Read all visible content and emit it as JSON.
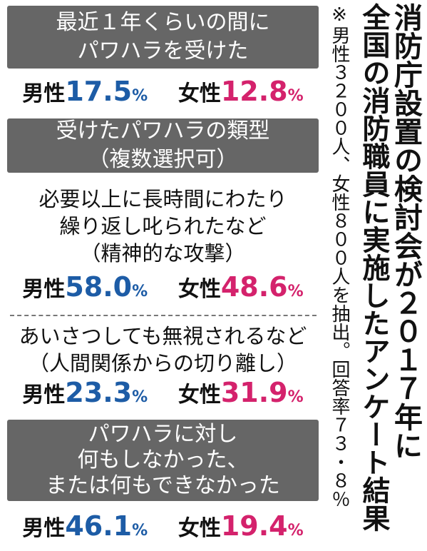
{
  "title": {
    "lines": [
      "消防庁設置の検討会が２０１７年に",
      "全国の消防職員に実施したアンケート結果"
    ]
  },
  "note": "※男性３２００人、女性８００人を抽出。回答率７３・８％",
  "sections": [
    {
      "heading": [
        "最近１年くらいの間に",
        "パワハラを受けた"
      ],
      "male_label": "男性",
      "male_value": "17.5",
      "male_unit": "%",
      "female_label": "女性",
      "female_value": "12.8",
      "female_unit": "%"
    },
    {
      "heading": [
        "受けたパワハラの類型",
        "（複数選択可）"
      ]
    },
    {
      "text": [
        "必要以上に長時間にわたり",
        "繰り返し叱られたなど",
        "（精神的な攻撃）"
      ],
      "male_label": "男性",
      "male_value": "58.0",
      "male_unit": "%",
      "female_label": "女性",
      "female_value": "48.6",
      "female_unit": "%"
    },
    {
      "text": [
        "あいさつしても無視されるなど",
        "（人間関係からの切り離し）"
      ],
      "male_label": "男性",
      "male_value": "23.3",
      "male_unit": "%",
      "female_label": "女性",
      "female_value": "31.9",
      "female_unit": "%"
    },
    {
      "heading": [
        "パワハラに対し",
        "何もしなかった、",
        "または何もできなかった"
      ],
      "male_label": "男性",
      "male_value": "46.1",
      "male_unit": "%",
      "female_label": "女性",
      "female_value": "19.4",
      "female_unit": "%"
    }
  ]
}
